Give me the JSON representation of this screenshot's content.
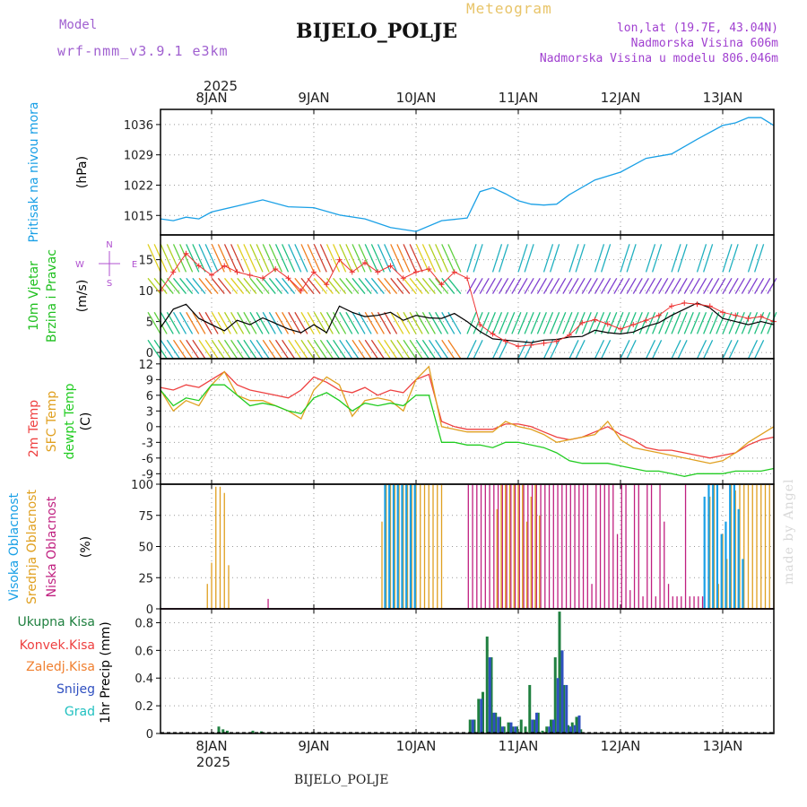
{
  "header": {
    "model_label": "Model",
    "model_version": "wrf-nmm_v3.9.1 e3km",
    "meteogram_label": "Meteogram",
    "station_name": "BIJELO_POLJE",
    "lonlat": "lon,lat (19.7E, 43.04N)",
    "elevation": "Nadmorska Visina 606m",
    "model_elevation": "Nadmorska Visina u modelu 806.046m"
  },
  "footer": {
    "station_name": "BIJELO_POLJE",
    "watermark": "made by Angel"
  },
  "colors": {
    "pressure": "#1aa0e6",
    "temp2m": "#ee4040",
    "sfc_temp": "#e0a020",
    "dewpt": "#22cc22",
    "wind_speed": "#000000",
    "gust": "#ee3030",
    "high_cloud": "#1aa0e6",
    "mid_cloud": "#e0a020",
    "low_cloud": "#c02080",
    "total_precip": "#208040",
    "conv_precip": "#ee4040",
    "frz_precip": "#f08030",
    "snow": "#3050c0",
    "graupel": "#20c0c0"
  },
  "chart_data": [
    {
      "type": "line",
      "panel": "pressure",
      "ylabel": [
        "Pritisak na nivou mora",
        "(hPa)"
      ],
      "y_ticks": [
        "1015",
        "1022",
        "1029",
        "1036"
      ],
      "ylim": [
        1010.5,
        1039.5
      ],
      "x_start_hours": 0,
      "x_end_hours": 144,
      "top_axis": {
        "year": "2025",
        "dates": [
          "8JAN",
          "9JAN",
          "10JAN",
          "11JAN",
          "12JAN",
          "13JAN"
        ]
      },
      "series": [
        {
          "name": "Pritisak na nivou mora",
          "x": [
            0,
            3,
            6,
            9,
            12,
            18,
            24,
            30,
            36,
            42,
            48,
            54,
            60,
            66,
            72,
            75,
            78,
            81,
            84,
            87,
            90,
            93,
            96,
            102,
            108,
            114,
            120,
            126,
            132,
            135,
            138,
            141,
            144
          ],
          "values": [
            1014.2,
            1013.8,
            1014.6,
            1014.2,
            1015.8,
            1017.2,
            1018.6,
            1017,
            1016.8,
            1015.1,
            1014.2,
            1012.2,
            1011.3,
            1013.8,
            1014.4,
            1020.5,
            1021.4,
            1020,
            1018.4,
            1017.6,
            1017.4,
            1017.6,
            1019.8,
            1023.2,
            1025,
            1028.2,
            1029.2,
            1032.6,
            1035.8,
            1036.4,
            1037.6,
            1037.6,
            1035.8
          ]
        }
      ]
    },
    {
      "type": "line",
      "panel": "wind",
      "ylabel": [
        "10m Vjetar",
        "Brzina i Pravac",
        "(m/s)"
      ],
      "compass": [
        "N",
        "S",
        "E",
        "W"
      ],
      "y_ticks": [
        "0",
        "5",
        "10",
        "15"
      ],
      "ylim": [
        -1,
        19
      ],
      "series": [
        {
          "name": "Brzina vjetra",
          "x": [
            0,
            3,
            6,
            9,
            12,
            15,
            18,
            21,
            24,
            27,
            30,
            33,
            36,
            39,
            42,
            45,
            48,
            51,
            54,
            57,
            60,
            63,
            66,
            69,
            72,
            75,
            78,
            81,
            84,
            87,
            90,
            93,
            96,
            99,
            102,
            105,
            108,
            111,
            114,
            117,
            120,
            123,
            126,
            129,
            132,
            135,
            138,
            141,
            144
          ],
          "values": [
            4,
            7,
            7.8,
            5.5,
            4.5,
            3.5,
            5.2,
            4.5,
            5.6,
            4.7,
            3.8,
            3.2,
            4.5,
            3.2,
            7.5,
            6.5,
            5.8,
            6,
            6.5,
            5.2,
            6,
            5.6,
            5.5,
            6.3,
            5,
            3.4,
            2.2,
            2,
            1.8,
            1.6,
            2,
            2.1,
            2.5,
            2.6,
            3.6,
            3.2,
            3,
            3.3,
            4.2,
            4.8,
            6,
            7,
            8,
            7.2,
            5.5,
            5,
            4.5,
            5,
            4.5
          ]
        },
        {
          "name": "Udari vjetra",
          "x": [
            0,
            3,
            6,
            9,
            12,
            15,
            18,
            21,
            24,
            27,
            30,
            33,
            36,
            39,
            42,
            45,
            48,
            51,
            54,
            57,
            60,
            63,
            66,
            69,
            72,
            75,
            78,
            81,
            84,
            87,
            90,
            93,
            96,
            99,
            102,
            105,
            108,
            111,
            114,
            117,
            120,
            123,
            126,
            129,
            132,
            135,
            138,
            141,
            144
          ],
          "values": [
            10,
            13,
            16,
            14,
            12.5,
            14,
            13,
            12.5,
            12,
            13.5,
            12,
            10,
            13,
            11,
            15,
            13,
            14.5,
            13,
            14,
            12,
            13,
            13.5,
            11,
            13,
            12,
            4.5,
            3,
            1.8,
            1,
            1.2,
            1.5,
            1.8,
            2.8,
            4.8,
            5.3,
            4.6,
            3.8,
            4.5,
            5.2,
            6,
            7.5,
            8,
            7.8,
            7.5,
            6.5,
            6,
            5.5,
            5.8,
            5
          ]
        }
      ]
    },
    {
      "type": "line",
      "panel": "temperature",
      "ylabel": [
        "2m Temp",
        "SFC Temp",
        "dewpt Temp",
        "(C)"
      ],
      "y_ticks": [
        "-9",
        "-6",
        "-3",
        "0",
        "3",
        "6",
        "9",
        "12"
      ],
      "ylim": [
        -11,
        13
      ],
      "series": [
        {
          "name": "2m Temp",
          "x": [
            0,
            3,
            6,
            9,
            12,
            15,
            18,
            21,
            24,
            27,
            30,
            33,
            36,
            39,
            42,
            45,
            48,
            51,
            54,
            57,
            60,
            63,
            66,
            69,
            72,
            75,
            78,
            81,
            84,
            87,
            90,
            93,
            96,
            99,
            102,
            105,
            108,
            111,
            114,
            117,
            120,
            123,
            126,
            129,
            132,
            135,
            138,
            141,
            144
          ],
          "values": [
            7.5,
            7,
            8,
            7.5,
            9,
            10.5,
            8,
            7,
            6.5,
            6,
            5.5,
            7,
            9.5,
            8.5,
            7,
            6.5,
            7.5,
            6,
            7,
            6.5,
            9,
            10,
            1,
            0,
            -0.5,
            -0.5,
            -0.5,
            0.5,
            0.5,
            0,
            -1,
            -2,
            -2.5,
            -2,
            -1,
            0,
            -1.5,
            -2.5,
            -4,
            -4.5,
            -4.5,
            -5,
            -5.5,
            -6,
            -5.5,
            -5,
            -3.5,
            -2.5,
            -2
          ]
        },
        {
          "name": "SFC Temp",
          "x": [
            0,
            3,
            6,
            9,
            12,
            15,
            18,
            21,
            24,
            27,
            30,
            33,
            36,
            39,
            42,
            45,
            48,
            51,
            54,
            57,
            60,
            63,
            66,
            69,
            72,
            75,
            78,
            81,
            84,
            87,
            90,
            93,
            96,
            99,
            102,
            105,
            108,
            111,
            114,
            117,
            120,
            123,
            126,
            129,
            132,
            135,
            138,
            141,
            144
          ],
          "values": [
            7,
            3,
            5,
            4,
            8,
            10.5,
            6,
            5,
            5,
            4,
            3,
            1.5,
            7,
            9.5,
            8,
            2,
            5,
            5.5,
            5,
            3,
            9,
            11.5,
            0,
            -0.5,
            -1,
            -1,
            -1,
            1,
            0,
            -0.5,
            -1.5,
            -3,
            -2.5,
            -2,
            -1.5,
            1,
            -2.5,
            -4,
            -4.5,
            -5,
            -5.5,
            -6,
            -6.5,
            -7,
            -6.5,
            -5,
            -3,
            -1.5,
            0
          ]
        },
        {
          "name": "dewpt Temp",
          "x": [
            0,
            3,
            6,
            9,
            12,
            15,
            18,
            21,
            24,
            27,
            30,
            33,
            36,
            39,
            42,
            45,
            48,
            51,
            54,
            57,
            60,
            63,
            66,
            69,
            72,
            75,
            78,
            81,
            84,
            87,
            90,
            93,
            96,
            99,
            102,
            105,
            108,
            111,
            114,
            117,
            120,
            123,
            126,
            129,
            132,
            135,
            138,
            141,
            144
          ],
          "values": [
            7,
            4,
            5.5,
            5,
            8,
            8,
            6,
            4,
            4.5,
            4,
            3,
            2.5,
            5.5,
            6.5,
            5,
            3,
            4.5,
            4,
            4.5,
            4,
            6,
            6,
            -3,
            -3,
            -3.5,
            -3.5,
            -4,
            -3,
            -3,
            -3.5,
            -4,
            -5,
            -6.5,
            -7,
            -7,
            -7,
            -7.5,
            -8,
            -8.5,
            -8.5,
            -9,
            -9.5,
            -9,
            -9,
            -9,
            -8.5,
            -8.5,
            -8.5,
            -8
          ]
        }
      ]
    },
    {
      "type": "bar",
      "panel": "clouds",
      "ylabel": [
        "Visoka Oblacnost",
        "Srednja Oblacnost",
        "Niska Oblacnost",
        "(%)"
      ],
      "y_ticks": [
        "0",
        "25",
        "50",
        "75",
        "100"
      ],
      "ylim": [
        0,
        100
      ],
      "series": [
        {
          "name": "Visoka Oblacnost",
          "x": [
            53,
            54,
            55,
            56,
            57,
            58,
            59,
            60,
            128,
            129,
            130,
            131,
            132,
            133,
            134,
            135,
            136,
            137
          ],
          "values": [
            100,
            100,
            100,
            100,
            100,
            100,
            100,
            100,
            90,
            100,
            100,
            100,
            60,
            70,
            100,
            100,
            80,
            40
          ]
        },
        {
          "name": "Srednja Oblacnost",
          "x": [
            11,
            12,
            13,
            14,
            15,
            16,
            17,
            18,
            52,
            53,
            54,
            55,
            56,
            57,
            58,
            59,
            60,
            61,
            62,
            63,
            64,
            65,
            66,
            79,
            80,
            81,
            82,
            83,
            84,
            85,
            86,
            87,
            88,
            89,
            129,
            130,
            131,
            132,
            133,
            134,
            135,
            136,
            137,
            138,
            139,
            140,
            141,
            142,
            143,
            144
          ],
          "values": [
            20,
            37,
            98,
            98,
            93,
            35,
            0,
            0,
            70,
            100,
            100,
            100,
            100,
            100,
            100,
            100,
            100,
            100,
            100,
            100,
            100,
            100,
            100,
            80,
            100,
            100,
            100,
            100,
            100,
            100,
            70,
            90,
            100,
            75,
            90,
            100,
            20,
            60,
            40,
            100,
            95,
            100,
            100,
            100,
            100,
            100,
            100,
            100,
            100,
            100
          ]
        },
        {
          "name": "Niska Oblacnost",
          "x": [
            25,
            72,
            73,
            74,
            75,
            76,
            77,
            78,
            79,
            80,
            81,
            82,
            83,
            84,
            85,
            86,
            87,
            88,
            89,
            90,
            91,
            92,
            93,
            94,
            95,
            96,
            97,
            98,
            99,
            100,
            101,
            102,
            103,
            104,
            105,
            106,
            107,
            108,
            109,
            110,
            111,
            112,
            113,
            114,
            115,
            116,
            117,
            118,
            119,
            120,
            121,
            122,
            123,
            124,
            125,
            126,
            127
          ],
          "values": [
            8,
            100,
            100,
            100,
            100,
            100,
            100,
            100,
            100,
            100,
            100,
            100,
            100,
            100,
            100,
            100,
            100,
            100,
            100,
            100,
            100,
            100,
            100,
            100,
            100,
            100,
            100,
            100,
            100,
            100,
            20,
            100,
            100,
            100,
            100,
            100,
            60,
            100,
            100,
            15,
            100,
            100,
            10,
            100,
            100,
            10,
            100,
            70,
            20,
            10,
            10,
            10,
            100,
            10,
            10,
            10,
            10
          ]
        }
      ]
    },
    {
      "type": "bar",
      "panel": "precip",
      "ylabel": [
        "Ukupna Kisa",
        "Konvek.Kisa",
        "Zaledj.Kisa",
        "Snijeg",
        "Grad",
        "1hr Precip (mm)"
      ],
      "y_ticks": [
        "0",
        "0.2",
        "0.4",
        "0.6",
        "0.8"
      ],
      "ylim": [
        0,
        0.9
      ],
      "bottom_axis": {
        "dates": [
          "8JAN",
          "9JAN",
          "10JAN",
          "11JAN",
          "12JAN",
          "13JAN"
        ],
        "year": "2025"
      },
      "series": [
        {
          "name": "Ukupna Kisa",
          "x": [
            14,
            15,
            16,
            22,
            24,
            73,
            74,
            75,
            76,
            77,
            78,
            79,
            80,
            81,
            82,
            83,
            84,
            85,
            86,
            87,
            88,
            89,
            90,
            91,
            92,
            93,
            94,
            95,
            96,
            97,
            98,
            99
          ],
          "values": [
            0.05,
            0.03,
            0.02,
            0.02,
            0.015,
            0.1,
            0.1,
            0.25,
            0.3,
            0.7,
            0.55,
            0.15,
            0.12,
            0.05,
            0.08,
            0.05,
            0.05,
            0.1,
            0.05,
            0.35,
            0.1,
            0.15,
            0.02,
            0.05,
            0.1,
            0.55,
            0.88,
            0.35,
            0.06,
            0.08,
            0.12,
            0.03
          ]
        },
        {
          "name": "Snijeg",
          "x": [
            73,
            75,
            77,
            78,
            79,
            80,
            82,
            83,
            87,
            88,
            91,
            92,
            93,
            94,
            95,
            96,
            97,
            98
          ],
          "values": [
            0.1,
            0.25,
            0.55,
            0.15,
            0.12,
            0.05,
            0.08,
            0.05,
            0.1,
            0.15,
            0.05,
            0.1,
            0.4,
            0.6,
            0.35,
            0.05,
            0.06,
            0.13
          ]
        }
      ]
    }
  ]
}
